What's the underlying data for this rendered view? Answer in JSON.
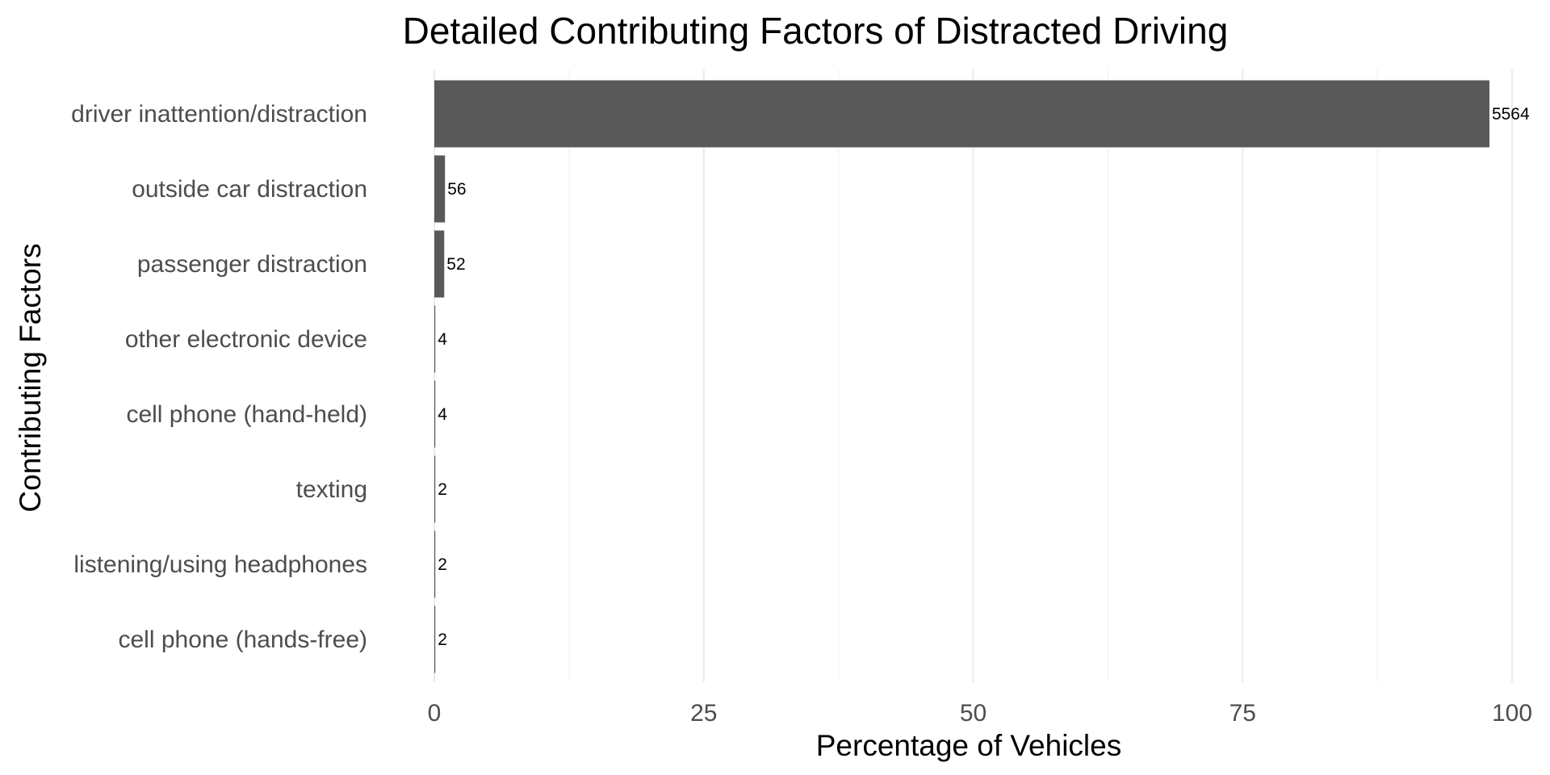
{
  "chart_data": {
    "type": "bar",
    "orientation": "horizontal",
    "title": "Detailed Contributing Factors of Distracted Driving",
    "xlabel": "Percentage of Vehicles",
    "ylabel": "Contributing Factors",
    "xlim": [
      0,
      100
    ],
    "x_ticks": [
      0,
      25,
      50,
      75,
      100
    ],
    "grid": true,
    "categories": [
      "driver inattention/distraction",
      "outside car distraction",
      "passenger distraction",
      "other electronic device",
      "cell phone (hand-held)",
      "texting",
      "listening/using headphones",
      "cell phone (hands-free)"
    ],
    "values": [
      97.9,
      0.99,
      0.92,
      0.07,
      0.07,
      0.04,
      0.04,
      0.04
    ],
    "data_labels": [
      "5564",
      "56",
      "52",
      "4",
      "4",
      "2",
      "2",
      "2"
    ],
    "bar_color": "#595959"
  }
}
